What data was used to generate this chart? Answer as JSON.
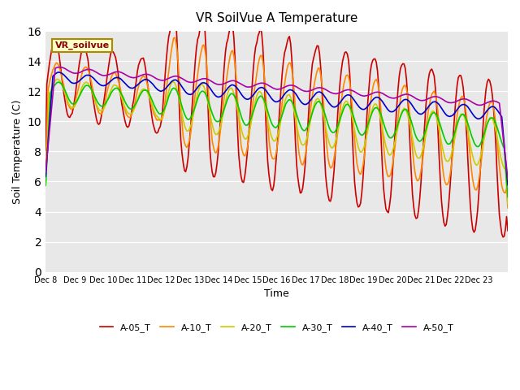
{
  "title": "VR SoilVue A Temperature",
  "xlabel": "Time",
  "ylabel": "Soil Temperature (C)",
  "ylim": [
    0,
    16
  ],
  "yticks": [
    0,
    2,
    4,
    6,
    8,
    10,
    12,
    14,
    16
  ],
  "start_day": 8,
  "end_day": 23,
  "colors": {
    "A-05_T": "#cc0000",
    "A-10_T": "#ff8800",
    "A-20_T": "#cccc00",
    "A-30_T": "#00cc00",
    "A-40_T": "#0000cc",
    "A-50_T": "#aa00aa"
  },
  "bg_color": "#e8e8e8",
  "legend_box_color": "#ffffcc",
  "legend_box_edge": "#aa8800",
  "legend_box_text": "#880000",
  "legend_box_label": "VR_soilvue"
}
